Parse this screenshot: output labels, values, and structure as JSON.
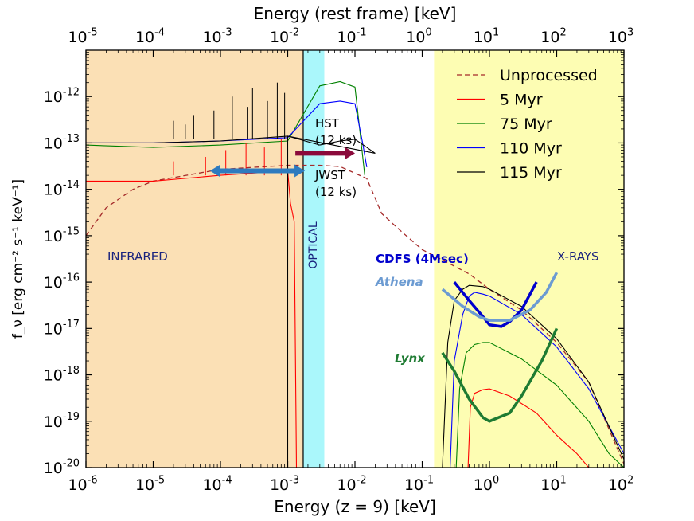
{
  "chart_data": {
    "type": "line",
    "xlabel": "Energy (z = 9) [keV]",
    "x2label": "Energy (rest frame) [keV]",
    "ylabel": "f_ν [erg cm⁻² s⁻¹ keV⁻¹]",
    "x_scale": "log",
    "y_scale": "log",
    "xlim": [
      1e-06,
      100
    ],
    "ylim": [
      1e-20,
      1e-11
    ],
    "x_ticks": [
      {
        "base": "10",
        "exp": "-6",
        "value": 1e-06
      },
      {
        "base": "10",
        "exp": "-5",
        "value": 1e-05
      },
      {
        "base": "10",
        "exp": "-4",
        "value": 0.0001
      },
      {
        "base": "10",
        "exp": "-3",
        "value": 0.001
      },
      {
        "base": "10",
        "exp": "-2",
        "value": 0.01
      },
      {
        "base": "10",
        "exp": "-1",
        "value": 0.1
      },
      {
        "base": "10",
        "exp": "0",
        "value": 1
      },
      {
        "base": "10",
        "exp": "1",
        "value": 10
      },
      {
        "base": "10",
        "exp": "2",
        "value": 100
      }
    ],
    "x2_ticks": [
      {
        "base": "10",
        "exp": "-5",
        "value": 1e-05
      },
      {
        "base": "10",
        "exp": "-4",
        "value": 0.0001
      },
      {
        "base": "10",
        "exp": "-3",
        "value": 0.001
      },
      {
        "base": "10",
        "exp": "-2",
        "value": 0.01
      },
      {
        "base": "10",
        "exp": "-1",
        "value": 0.1
      },
      {
        "base": "10",
        "exp": "0",
        "value": 1
      },
      {
        "base": "10",
        "exp": "1",
        "value": 10
      },
      {
        "base": "10",
        "exp": "2",
        "value": 100
      },
      {
        "base": "10",
        "exp": "3",
        "value": 1000
      }
    ],
    "y_ticks": [
      {
        "base": "10",
        "exp": "-20",
        "value": 1e-20
      },
      {
        "base": "10",
        "exp": "-19",
        "value": 1e-19
      },
      {
        "base": "10",
        "exp": "-18",
        "value": 1e-18
      },
      {
        "base": "10",
        "exp": "-17",
        "value": 1e-17
      },
      {
        "base": "10",
        "exp": "-16",
        "value": 1e-16
      },
      {
        "base": "10",
        "exp": "-15",
        "value": 1e-15
      },
      {
        "base": "10",
        "exp": "-14",
        "value": 1e-14
      },
      {
        "base": "10",
        "exp": "-13",
        "value": 1e-13
      },
      {
        "base": "10",
        "exp": "-12",
        "value": 1e-12
      }
    ],
    "bands": [
      {
        "name": "infrared",
        "label": "INFRARED",
        "x_range": [
          1e-06,
          0.0017
        ],
        "color": "#fbe0b5",
        "label_color": "#1a237e"
      },
      {
        "name": "optical",
        "label": "OPTICAL",
        "x_range": [
          0.0017,
          0.0035
        ],
        "color": "#aaf7fb",
        "label_color": "#1a237e"
      },
      {
        "name": "x-rays",
        "label": "X-RAYS",
        "x_range": [
          0.15,
          100
        ],
        "color": "#fdfdb3",
        "label_color": "#1a237e"
      }
    ],
    "legend": {
      "placement": "top-right",
      "entries": [
        {
          "label": "Unprocessed",
          "color": "#a52a2a",
          "style": "dashed"
        },
        {
          "label": "5 Myr",
          "color": "#ff0000",
          "style": "solid"
        },
        {
          "label": "75 Myr",
          "color": "#008000",
          "style": "solid"
        },
        {
          "label": "110 Myr",
          "color": "#0000ff",
          "style": "solid"
        },
        {
          "label": "115 Myr",
          "color": "#000000",
          "style": "solid"
        }
      ]
    },
    "series": [
      {
        "name": "Unprocessed",
        "color": "#a52a2a",
        "dash": true,
        "width": 1.3,
        "points": [
          [
            1e-06,
            1e-15
          ],
          [
            2e-06,
            4e-15
          ],
          [
            5e-06,
            1e-14
          ],
          [
            1e-05,
            1.5e-14
          ],
          [
            0.0001,
            2.7e-14
          ],
          [
            0.001,
            3.3e-14
          ],
          [
            0.003,
            3.3e-14
          ],
          [
            0.006,
            3.1e-14
          ],
          [
            0.015,
            1.7e-14
          ],
          [
            0.025,
            3e-15
          ],
          [
            0.05,
            1.2e-15
          ],
          [
            0.1,
            5e-16
          ],
          [
            0.2,
            3e-16
          ],
          [
            0.5,
            1.5e-16
          ],
          [
            1,
            7e-17
          ],
          [
            3,
            2.5e-17
          ],
          [
            10,
            5e-18
          ],
          [
            30,
            7e-19
          ],
          [
            100,
            1.2e-20
          ]
        ]
      },
      {
        "name": "5 Myr",
        "color": "#ff0000",
        "dash": false,
        "width": 1.1,
        "points": [
          [
            1e-06,
            1.5e-14
          ],
          [
            1e-05,
            1.5e-14
          ],
          [
            0.0001,
            2e-14
          ],
          [
            0.001,
            2.5e-14
          ],
          [
            0.0011,
            5e-15
          ],
          [
            0.00125,
            2e-15
          ],
          [
            0.00135,
            1e-20
          ]
        ]
      },
      {
        "name": "5 Myr X-ray",
        "color": "#ff0000",
        "dash": false,
        "width": 1.1,
        "points": [
          [
            0.48,
            1e-20
          ],
          [
            0.52,
            2e-19
          ],
          [
            0.6,
            4e-19
          ],
          [
            0.8,
            4.8e-19
          ],
          [
            1,
            5e-19
          ],
          [
            2,
            3.5e-19
          ],
          [
            5,
            1.5e-19
          ],
          [
            10,
            5e-20
          ],
          [
            20,
            2e-20
          ],
          [
            30,
            1e-20
          ]
        ]
      },
      {
        "name": "75 Myr",
        "color": "#008000",
        "dash": false,
        "width": 1.1,
        "points": [
          [
            1e-06,
            9e-14
          ],
          [
            1e-05,
            8e-14
          ],
          [
            0.0001,
            9e-14
          ],
          [
            0.001,
            1.1e-13
          ],
          [
            0.003,
            1.7e-12
          ],
          [
            0.006,
            2.1e-12
          ],
          [
            0.01,
            1.6e-12
          ],
          [
            0.012,
            1.5e-13
          ],
          [
            0.014,
            2e-14
          ]
        ]
      },
      {
        "name": "75 Myr X-ray",
        "color": "#008000",
        "dash": false,
        "width": 1.1,
        "points": [
          [
            0.32,
            1e-20
          ],
          [
            0.36,
            5e-19
          ],
          [
            0.45,
            3e-18
          ],
          [
            0.6,
            4.5e-18
          ],
          [
            0.8,
            5e-18
          ],
          [
            1,
            5e-18
          ],
          [
            3,
            2.2e-18
          ],
          [
            10,
            6e-19
          ],
          [
            30,
            1e-19
          ],
          [
            60,
            2e-20
          ],
          [
            100,
            1e-20
          ]
        ]
      },
      {
        "name": "110 Myr",
        "color": "#0000ff",
        "dash": false,
        "width": 1.1,
        "points": [
          [
            1e-06,
            1e-13
          ],
          [
            1e-05,
            1e-13
          ],
          [
            0.0001,
            1.1e-13
          ],
          [
            0.001,
            1.3e-13
          ],
          [
            0.003,
            7e-13
          ],
          [
            0.006,
            8e-13
          ],
          [
            0.01,
            7e-13
          ],
          [
            0.013,
            1e-13
          ],
          [
            0.015,
            3e-14
          ]
        ]
      },
      {
        "name": "110 Myr X-ray",
        "color": "#0000ff",
        "dash": false,
        "width": 1.1,
        "points": [
          [
            0.26,
            1e-20
          ],
          [
            0.3,
            2e-18
          ],
          [
            0.4,
            2e-17
          ],
          [
            0.5,
            5e-17
          ],
          [
            0.6,
            6e-17
          ],
          [
            0.8,
            5.5e-17
          ],
          [
            1,
            5e-17
          ],
          [
            3,
            2e-17
          ],
          [
            10,
            4e-18
          ],
          [
            30,
            5e-19
          ],
          [
            100,
            2e-20
          ]
        ]
      },
      {
        "name": "115 Myr",
        "color": "#000000",
        "dash": false,
        "width": 1.1,
        "points": [
          [
            1e-06,
            1e-13
          ],
          [
            1e-05,
            1e-13
          ],
          [
            0.0001,
            1.1e-13
          ],
          [
            0.001,
            1.4e-13
          ],
          [
            0.003,
            9e-14
          ],
          [
            0.006,
            1.1e-13
          ],
          [
            0.01,
            1.2e-13
          ],
          [
            0.015,
            8e-14
          ],
          [
            0.02,
            6e-14
          ],
          [
            0.001,
            1.4e-13
          ],
          [
            0.001,
            1e-20
          ]
        ]
      },
      {
        "name": "115 Myr X-ray",
        "color": "#000000",
        "dash": false,
        "width": 1.1,
        "points": [
          [
            0.2,
            1e-20
          ],
          [
            0.24,
            5e-18
          ],
          [
            0.3,
            4e-17
          ],
          [
            0.4,
            7e-17
          ],
          [
            0.5,
            8.5e-17
          ],
          [
            0.8,
            8e-17
          ],
          [
            1,
            7e-17
          ],
          [
            3,
            3e-17
          ],
          [
            10,
            6e-18
          ],
          [
            30,
            7e-19
          ],
          [
            100,
            1.5e-20
          ]
        ]
      }
    ],
    "sensitivity_curves": [
      {
        "name": "CDFS (4Msec)",
        "color": "#0000cd",
        "width": 3.5,
        "points": [
          [
            0.3,
            1e-16
          ],
          [
            0.5,
            4e-17
          ],
          [
            0.8,
            1.8e-17
          ],
          [
            1,
            1.2e-17
          ],
          [
            1.5,
            1.1e-17
          ],
          [
            2,
            1.4e-17
          ],
          [
            3,
            2.5e-17
          ],
          [
            5,
            1e-16
          ]
        ]
      },
      {
        "name": "Athena",
        "color": "#6c9bd2",
        "width": 3.5,
        "points": [
          [
            0.2,
            7e-17
          ],
          [
            0.4,
            3e-17
          ],
          [
            0.7,
            1.8e-17
          ],
          [
            1,
            1.5e-17
          ],
          [
            2,
            1.5e-17
          ],
          [
            4,
            2.5e-17
          ],
          [
            7,
            6e-17
          ],
          [
            10,
            1.6e-16
          ]
        ]
      },
      {
        "name": "Lynx",
        "color": "#1e7b32",
        "width": 3.5,
        "points": [
          [
            0.2,
            3e-18
          ],
          [
            0.3,
            1.2e-18
          ],
          [
            0.5,
            3e-19
          ],
          [
            0.8,
            1.2e-19
          ],
          [
            1,
            1e-19
          ],
          [
            2,
            1.5e-19
          ],
          [
            3,
            3.5e-19
          ],
          [
            6,
            2e-18
          ],
          [
            10,
            1e-17
          ]
        ]
      }
    ],
    "observatory_labels": [
      {
        "text": "CDFS (4Msec)",
        "color": "#0000cd",
        "weight": "bold",
        "style": "normal"
      },
      {
        "text": "Athena",
        "color": "#6c9bd2",
        "weight": "bold",
        "style": "italic"
      },
      {
        "text": "Lynx",
        "color": "#1e7b32",
        "weight": "bold",
        "style": "italic"
      }
    ],
    "arrows": [
      {
        "label": "HST",
        "sublabel": "(12 ks)",
        "color": "#8b0a3b",
        "x_range": [
          0.0013,
          0.01
        ],
        "y": 6e-14,
        "heads": "right"
      },
      {
        "label": "JWST",
        "sublabel": "(12 ks)",
        "color": "#2e7bbf",
        "x_range": [
          7e-05,
          0.0018
        ],
        "y": 2.5e-14,
        "heads": "both"
      }
    ]
  }
}
